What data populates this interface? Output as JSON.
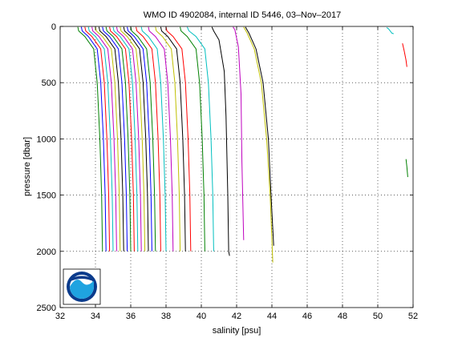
{
  "chart_data": {
    "type": "line",
    "title": "WMO ID 4902084, internal ID 5446, 03–Nov–2017",
    "xlabel": "salinity [psu]",
    "ylabel": "pressure [dbar]",
    "xlim": [
      32,
      52
    ],
    "ylim": [
      0,
      2500
    ],
    "y_reversed": true,
    "grid": true,
    "x_ticks": [
      32,
      34,
      36,
      38,
      40,
      42,
      44,
      46,
      48,
      50,
      52
    ],
    "y_ticks": [
      0,
      500,
      1000,
      1500,
      2000,
      2500
    ],
    "logo": "NOAA",
    "series": [
      {
        "color": "#008000",
        "points": [
          [
            33.0,
            5
          ],
          [
            33.05,
            40
          ],
          [
            33.4,
            90
          ],
          [
            33.9,
            200
          ],
          [
            34.1,
            500
          ],
          [
            34.25,
            1000
          ],
          [
            34.35,
            1500
          ],
          [
            34.4,
            2000
          ]
        ]
      },
      {
        "color": "#0000ff",
        "points": [
          [
            33.2,
            5
          ],
          [
            33.25,
            40
          ],
          [
            33.6,
            90
          ],
          [
            34.1,
            200
          ],
          [
            34.3,
            500
          ],
          [
            34.45,
            1000
          ],
          [
            34.55,
            1500
          ],
          [
            34.6,
            2000
          ]
        ]
      },
      {
        "color": "#ff0000",
        "points": [
          [
            33.4,
            5
          ],
          [
            33.45,
            40
          ],
          [
            33.8,
            90
          ],
          [
            34.3,
            200
          ],
          [
            34.5,
            500
          ],
          [
            34.65,
            1000
          ],
          [
            34.75,
            1500
          ],
          [
            34.8,
            2000
          ]
        ]
      },
      {
        "color": "#00bfbf",
        "points": [
          [
            33.6,
            5
          ],
          [
            33.65,
            40
          ],
          [
            34.0,
            90
          ],
          [
            34.5,
            200
          ],
          [
            34.7,
            500
          ],
          [
            34.85,
            1000
          ],
          [
            34.95,
            1500
          ],
          [
            35.0,
            2000
          ]
        ]
      },
      {
        "color": "#bf00bf",
        "points": [
          [
            33.8,
            5
          ],
          [
            33.85,
            40
          ],
          [
            34.2,
            90
          ],
          [
            34.7,
            200
          ],
          [
            34.9,
            500
          ],
          [
            35.05,
            1000
          ],
          [
            35.15,
            1500
          ],
          [
            35.2,
            2000
          ]
        ]
      },
      {
        "color": "#bfbf00",
        "points": [
          [
            34.0,
            5
          ],
          [
            34.05,
            40
          ],
          [
            34.4,
            90
          ],
          [
            34.9,
            200
          ],
          [
            35.1,
            500
          ],
          [
            35.25,
            1000
          ],
          [
            35.35,
            1500
          ],
          [
            35.4,
            2000
          ]
        ]
      },
      {
        "color": "#000000",
        "points": [
          [
            34.2,
            5
          ],
          [
            34.25,
            40
          ],
          [
            34.6,
            90
          ],
          [
            35.1,
            200
          ],
          [
            35.3,
            500
          ],
          [
            35.45,
            1000
          ],
          [
            35.55,
            1500
          ],
          [
            35.6,
            2000
          ]
        ]
      },
      {
        "color": "#0000ff",
        "points": [
          [
            34.4,
            5
          ],
          [
            34.45,
            40
          ],
          [
            34.8,
            90
          ],
          [
            35.3,
            200
          ],
          [
            35.5,
            500
          ],
          [
            35.65,
            1000
          ],
          [
            35.75,
            1500
          ],
          [
            35.8,
            2000
          ]
        ]
      },
      {
        "color": "#008000",
        "points": [
          [
            34.6,
            5
          ],
          [
            34.65,
            40
          ],
          [
            35.0,
            90
          ],
          [
            35.5,
            200
          ],
          [
            35.7,
            500
          ],
          [
            35.85,
            1000
          ],
          [
            35.95,
            1500
          ],
          [
            36.0,
            2000
          ]
        ]
      },
      {
        "color": "#ff0000",
        "points": [
          [
            34.8,
            5
          ],
          [
            34.85,
            40
          ],
          [
            35.2,
            90
          ],
          [
            35.7,
            200
          ],
          [
            35.9,
            500
          ],
          [
            36.05,
            1000
          ],
          [
            36.15,
            1500
          ],
          [
            36.2,
            2000
          ]
        ]
      },
      {
        "color": "#00bfbf",
        "points": [
          [
            35.0,
            5
          ],
          [
            35.05,
            40
          ],
          [
            35.4,
            90
          ],
          [
            35.9,
            200
          ],
          [
            36.1,
            500
          ],
          [
            36.25,
            1000
          ],
          [
            36.35,
            1500
          ],
          [
            36.4,
            2000
          ]
        ]
      },
      {
        "color": "#bf00bf",
        "points": [
          [
            35.2,
            5
          ],
          [
            35.25,
            40
          ],
          [
            35.6,
            90
          ],
          [
            36.1,
            200
          ],
          [
            36.3,
            500
          ],
          [
            36.45,
            1000
          ],
          [
            36.55,
            1500
          ],
          [
            36.6,
            2000
          ]
        ]
      },
      {
        "color": "#bfbf00",
        "points": [
          [
            35.4,
            5
          ],
          [
            35.45,
            40
          ],
          [
            35.8,
            90
          ],
          [
            36.3,
            200
          ],
          [
            36.5,
            500
          ],
          [
            36.65,
            1000
          ],
          [
            36.75,
            1500
          ],
          [
            36.8,
            2000
          ]
        ]
      },
      {
        "color": "#000000",
        "points": [
          [
            35.6,
            5
          ],
          [
            35.65,
            40
          ],
          [
            36.0,
            90
          ],
          [
            36.5,
            200
          ],
          [
            36.7,
            500
          ],
          [
            36.85,
            1000
          ],
          [
            36.95,
            1500
          ],
          [
            37.0,
            2000
          ]
        ]
      },
      {
        "color": "#0000ff",
        "points": [
          [
            35.8,
            5
          ],
          [
            35.85,
            40
          ],
          [
            36.2,
            90
          ],
          [
            36.7,
            200
          ],
          [
            36.9,
            500
          ],
          [
            37.05,
            1000
          ],
          [
            37.15,
            1500
          ],
          [
            37.2,
            2000
          ]
        ]
      },
      {
        "color": "#008000",
        "points": [
          [
            36.0,
            5
          ],
          [
            36.05,
            40
          ],
          [
            36.4,
            90
          ],
          [
            36.9,
            200
          ],
          [
            37.1,
            500
          ],
          [
            37.25,
            1000
          ],
          [
            37.35,
            1500
          ],
          [
            37.4,
            2000
          ]
        ]
      },
      {
        "color": "#ff0000",
        "points": [
          [
            36.3,
            5
          ],
          [
            36.35,
            40
          ],
          [
            36.7,
            90
          ],
          [
            37.2,
            200
          ],
          [
            37.4,
            500
          ],
          [
            37.55,
            1000
          ],
          [
            37.65,
            1500
          ],
          [
            37.7,
            2000
          ]
        ]
      },
      {
        "color": "#00bfbf",
        "points": [
          [
            36.6,
            5
          ],
          [
            36.65,
            40
          ],
          [
            37.0,
            90
          ],
          [
            37.5,
            200
          ],
          [
            37.7,
            500
          ],
          [
            37.85,
            1000
          ],
          [
            37.95,
            1500
          ],
          [
            38.0,
            2000
          ]
        ]
      },
      {
        "color": "#bf00bf",
        "points": [
          [
            37.0,
            5
          ],
          [
            37.05,
            40
          ],
          [
            37.4,
            90
          ],
          [
            37.9,
            200
          ],
          [
            38.1,
            500
          ],
          [
            38.25,
            1000
          ],
          [
            38.35,
            1500
          ],
          [
            38.4,
            2000
          ]
        ]
      },
      {
        "color": "#bfbf00",
        "points": [
          [
            37.4,
            5
          ],
          [
            37.45,
            40
          ],
          [
            37.8,
            90
          ],
          [
            38.3,
            200
          ],
          [
            38.5,
            500
          ],
          [
            38.65,
            1000
          ],
          [
            38.75,
            1500
          ],
          [
            38.8,
            2000
          ]
        ]
      },
      {
        "color": "#000000",
        "points": [
          [
            37.7,
            5
          ],
          [
            37.75,
            40
          ],
          [
            38.1,
            90
          ],
          [
            38.6,
            200
          ],
          [
            38.8,
            500
          ],
          [
            38.95,
            1000
          ],
          [
            39.05,
            1500
          ],
          [
            39.1,
            2000
          ]
        ]
      },
      {
        "color": "#ff0000",
        "points": [
          [
            38.0,
            5
          ],
          [
            38.05,
            40
          ],
          [
            38.4,
            90
          ],
          [
            38.9,
            200
          ],
          [
            39.1,
            500
          ],
          [
            39.25,
            1000
          ],
          [
            39.35,
            1500
          ],
          [
            39.4,
            2000
          ]
        ]
      },
      {
        "color": "#008000",
        "points": [
          [
            38.8,
            5
          ],
          [
            38.85,
            40
          ],
          [
            39.2,
            90
          ],
          [
            39.7,
            200
          ],
          [
            39.9,
            500
          ],
          [
            40.05,
            1000
          ],
          [
            40.15,
            1500
          ],
          [
            40.2,
            2000
          ]
        ]
      },
      {
        "color": "#00bfbf",
        "points": [
          [
            39.2,
            5
          ],
          [
            39.3,
            40
          ],
          [
            39.7,
            90
          ],
          [
            40.2,
            200
          ],
          [
            40.4,
            500
          ],
          [
            40.55,
            1000
          ],
          [
            40.65,
            1500
          ],
          [
            40.7,
            2000
          ]
        ]
      },
      {
        "color": "#000000",
        "points": [
          [
            40.6,
            5
          ],
          [
            40.7,
            40
          ],
          [
            41.0,
            120
          ],
          [
            41.3,
            400
          ],
          [
            41.4,
            800
          ],
          [
            41.5,
            1500
          ],
          [
            41.55,
            2000
          ],
          [
            41.6,
            2040
          ]
        ]
      },
      {
        "color": "#bf00bf",
        "points": [
          [
            41.8,
            5
          ],
          [
            41.9,
            30
          ],
          [
            42.1,
            180
          ],
          [
            42.25,
            600
          ],
          [
            42.3,
            1200
          ],
          [
            42.4,
            1900
          ]
        ]
      },
      {
        "color": "#bfbf00",
        "points": [
          [
            42.4,
            5
          ],
          [
            42.6,
            60
          ],
          [
            43.0,
            200
          ],
          [
            43.4,
            500
          ],
          [
            43.7,
            1000
          ],
          [
            43.9,
            1500
          ],
          [
            44.0,
            1900
          ],
          [
            44.05,
            2100
          ]
        ]
      },
      {
        "color": "#000000",
        "points": [
          [
            42.5,
            5
          ],
          [
            42.7,
            60
          ],
          [
            43.1,
            200
          ],
          [
            43.5,
            500
          ],
          [
            43.8,
            1000
          ],
          [
            43.95,
            1500
          ],
          [
            44.1,
            1950
          ]
        ]
      },
      {
        "color": "#00bfbf",
        "points": [
          [
            50.5,
            10
          ],
          [
            50.6,
            20
          ],
          [
            50.7,
            40
          ],
          [
            50.8,
            60
          ],
          [
            50.9,
            65
          ]
        ]
      },
      {
        "color": "#ff0000",
        "points": [
          [
            51.4,
            150
          ],
          [
            51.5,
            220
          ],
          [
            51.6,
            300
          ],
          [
            51.65,
            360
          ]
        ]
      },
      {
        "color": "#008000",
        "points": [
          [
            51.6,
            1180
          ],
          [
            51.65,
            1250
          ],
          [
            51.7,
            1340
          ]
        ]
      }
    ]
  }
}
